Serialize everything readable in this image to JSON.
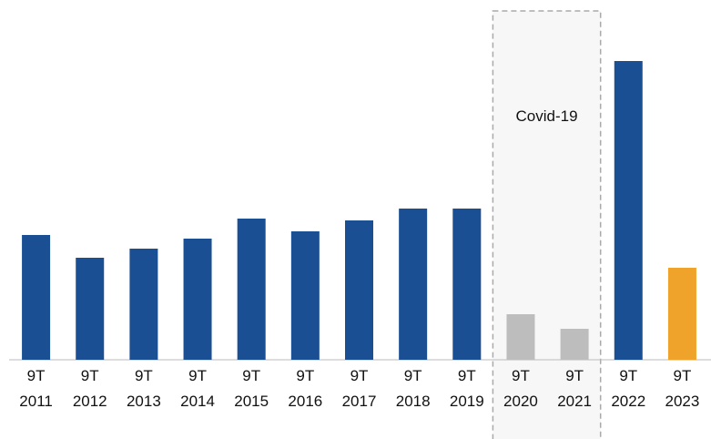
{
  "chart_data": {
    "type": "bar",
    "categories": [
      "9T 2011",
      "9T 2012",
      "9T 2013",
      "9T 2014",
      "9T 2015",
      "9T 2016",
      "9T 2017",
      "9T 2018",
      "9T 2019",
      "9T 2020",
      "9T 2021",
      "9T 2022",
      "9T 2023"
    ],
    "values": [
      137,
      112,
      122,
      133,
      155,
      141,
      153,
      166,
      166,
      50,
      34,
      328,
      101
    ],
    "colors": [
      "#1a4f93",
      "#1a4f93",
      "#1a4f93",
      "#1a4f93",
      "#1a4f93",
      "#1a4f93",
      "#1a4f93",
      "#1a4f93",
      "#1a4f93",
      "#bdbdbd",
      "#bdbdbd",
      "#1a4f93",
      "#f0a32a"
    ],
    "ylim": [
      0,
      350
    ],
    "annotations": [
      {
        "text": "Covid-19",
        "from": "9T 2020",
        "to": "9T 2021"
      }
    ]
  }
}
